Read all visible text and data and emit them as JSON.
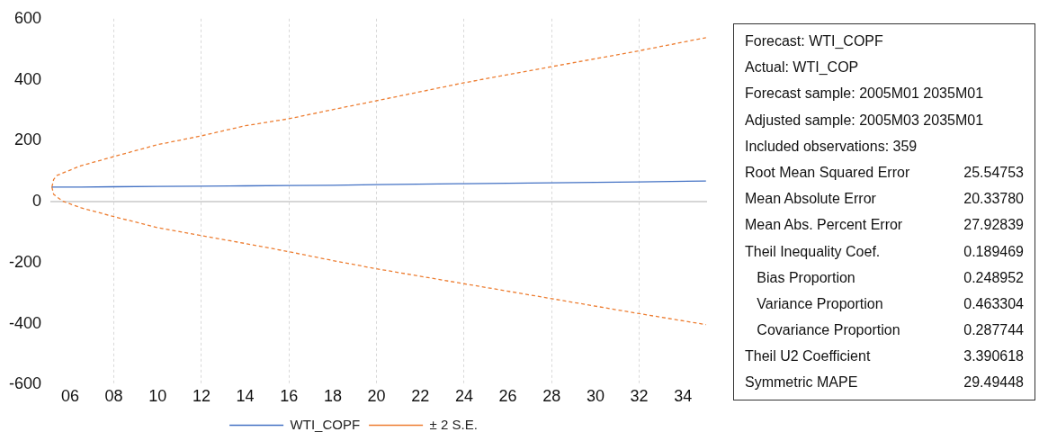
{
  "chart_data": [
    {
      "type": "line",
      "xlim": [
        2005.1,
        2035.1
      ],
      "ylim": [
        -600,
        600
      ],
      "yticks": [
        -600,
        -400,
        -200,
        0,
        200,
        400,
        600
      ],
      "xticks": [
        {
          "value": 2006,
          "label": "06"
        },
        {
          "value": 2008,
          "label": "08"
        },
        {
          "value": 2010,
          "label": "10"
        },
        {
          "value": 2012,
          "label": "12"
        },
        {
          "value": 2014,
          "label": "14"
        },
        {
          "value": 2016,
          "label": "16"
        },
        {
          "value": 2018,
          "label": "18"
        },
        {
          "value": 2020,
          "label": "20"
        },
        {
          "value": 2022,
          "label": "22"
        },
        {
          "value": 2024,
          "label": "24"
        },
        {
          "value": 2026,
          "label": "26"
        },
        {
          "value": 2028,
          "label": "28"
        },
        {
          "value": 2030,
          "label": "30"
        },
        {
          "value": 2032,
          "label": "32"
        },
        {
          "value": 2034,
          "label": "34"
        }
      ],
      "grid": "x",
      "legend": "bottom",
      "marker": "none",
      "ref_lines": [
        {
          "axis": "y",
          "value": 0,
          "color": "#c8c8c8"
        }
      ],
      "series": [
        {
          "name": "WTI_COPF",
          "color": "#4472c4",
          "line_style": "solid",
          "x": [
            2005.17,
            2005.7,
            2006.5,
            2008,
            2010,
            2012,
            2014,
            2016,
            2018,
            2020,
            2024,
            2028,
            2032,
            2035.05
          ],
          "values": [
            48,
            48,
            48,
            49,
            50,
            51,
            52,
            53,
            54,
            56,
            59,
            62,
            65,
            68
          ]
        },
        {
          "name": "± 2 S.E.",
          "color": "#ed7d31",
          "line_style": "dashed",
          "x": [
            2005.17,
            2005.25,
            2005.4,
            2005.7,
            2006.5,
            2008,
            2010,
            2012,
            2014,
            2016,
            2018,
            2020,
            2024,
            2028,
            2032,
            2035.05
          ],
          "values": [
            48,
            73,
            86,
            95,
            118,
            148,
            187,
            216,
            249,
            272,
            302,
            331,
            390,
            443,
            495,
            538
          ]
        },
        {
          "color": "#ed7d31",
          "line_style": "dashed",
          "x": [
            2005.17,
            2005.25,
            2005.65,
            2006.5,
            2008,
            2010,
            2012,
            2014,
            2016,
            2018,
            2020,
            2024,
            2028,
            2032,
            2035.05
          ],
          "values": [
            48,
            24,
            2,
            -20,
            -49,
            -85,
            -111,
            -137,
            -164,
            -193,
            -220,
            -269,
            -318,
            -367,
            -403
          ]
        }
      ]
    },
    {
      "type": "other",
      "categories": [
        "Forecast: WTI_COPF",
        "Actual: WTI_COP",
        "Forecast sample: 2005M01 2035M01",
        "Adjusted sample: 2005M03 2035M01",
        "Included observations: 359",
        "Root Mean Squared Error",
        "Mean Absolute Error",
        "Mean Abs. Percent Error",
        "Theil Inequality Coef.",
        "   Bias Proportion",
        "   Variance Proportion",
        "   Covariance Proportion",
        "Theil U2 Coefficient",
        "Symmetric MAPE"
      ],
      "value_labels": [
        null,
        null,
        null,
        null,
        null,
        "25.54753",
        "20.33780",
        "27.92839",
        "0.189469",
        "0.248952",
        "0.463304",
        "0.287744",
        "3.390618",
        "29.49448"
      ]
    }
  ]
}
